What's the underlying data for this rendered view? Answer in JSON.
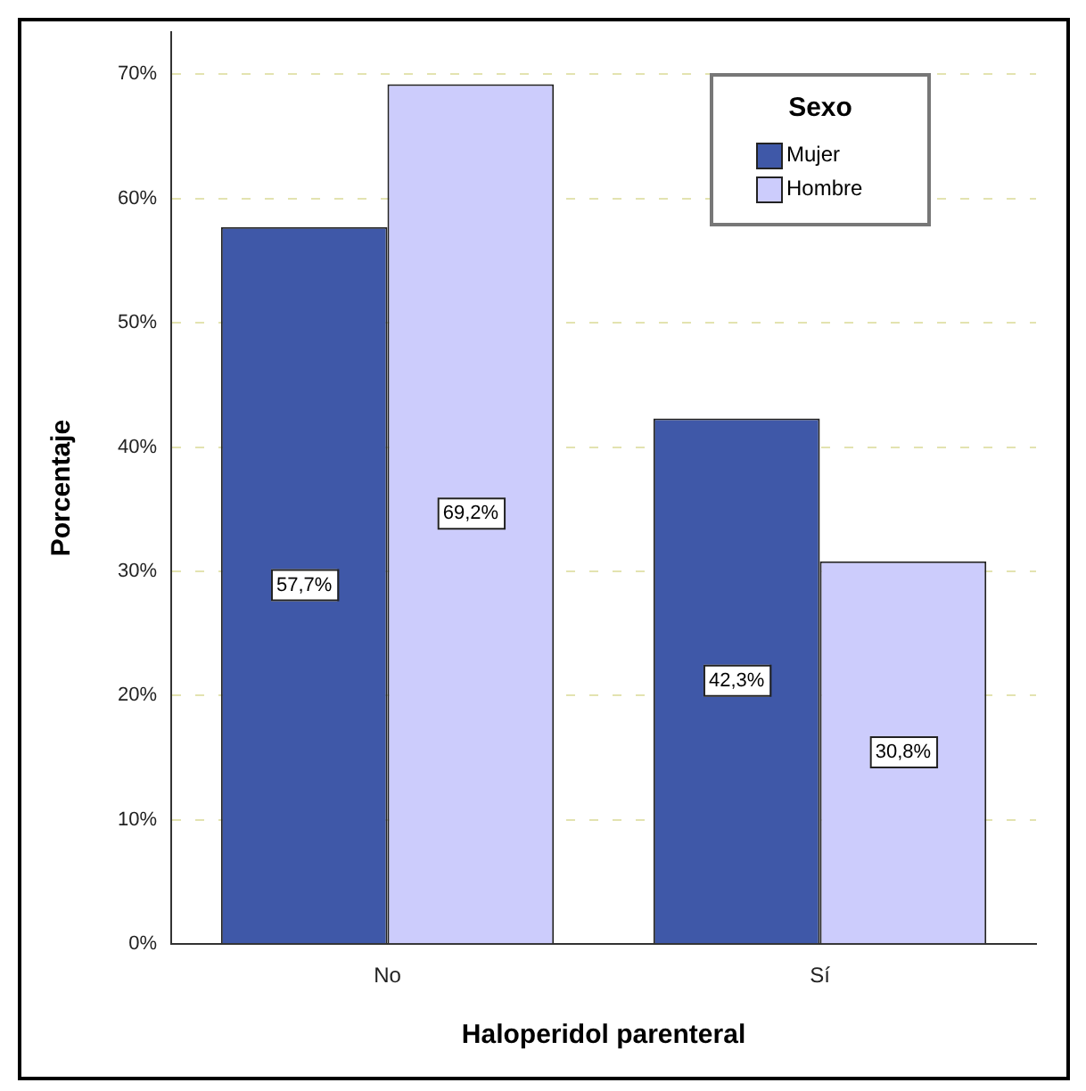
{
  "chart_data": {
    "type": "bar",
    "xlabel": "Haloperidol parenteral",
    "ylabel": "Porcentaje",
    "legend_title": "Sexo",
    "categories": [
      "No",
      "Sí"
    ],
    "series": [
      {
        "name": "Mujer",
        "color": "#3f58a8",
        "values": [
          57.7,
          42.3
        ],
        "value_labels": [
          "57,7%",
          "42,3%"
        ]
      },
      {
        "name": "Hombre",
        "color": "#ccccfc",
        "values": [
          69.2,
          30.8
        ],
        "value_labels": [
          "69,2%",
          "30,8%"
        ]
      }
    ],
    "ylim": [
      0,
      73.4
    ],
    "yticks": [
      {
        "value": 0,
        "label": "0%"
      },
      {
        "value": 10,
        "label": "10%"
      },
      {
        "value": 20,
        "label": "20%"
      },
      {
        "value": 30,
        "label": "30%"
      },
      {
        "value": 40,
        "label": "40%"
      },
      {
        "value": 50,
        "label": "50%"
      },
      {
        "value": 60,
        "label": "60%"
      },
      {
        "value": 70,
        "label": "70%"
      }
    ],
    "grid": "y",
    "legend": "top right"
  }
}
